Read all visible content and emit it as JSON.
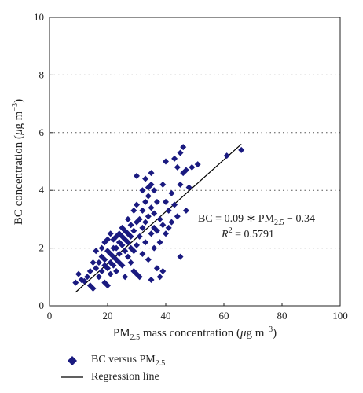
{
  "chart_data": {
    "type": "scatter",
    "xlabel": {
      "pre": "PM",
      "sub": "2.5",
      "post": " mass concentration (",
      "mu": "μ",
      "unit": "g m",
      "sup": "−3",
      "close": ")"
    },
    "ylabel": {
      "pre": "BC concentration (",
      "mu": "μ",
      "unit": "g m",
      "sup": "−3",
      "close": ")"
    },
    "xlim": [
      0,
      100
    ],
    "ylim": [
      0,
      10
    ],
    "xticks": [
      0,
      20,
      40,
      60,
      80,
      100
    ],
    "yticks": [
      0,
      2,
      4,
      6,
      8,
      10
    ],
    "grid": "horizontal dotted",
    "marker_color": "#1a1a80",
    "line_color": "#000000",
    "regression": {
      "slope": 0.09,
      "intercept": -0.34,
      "x_range": [
        9,
        66
      ]
    },
    "annotation": {
      "eq_pre": "BC = 0.09 ∗ PM",
      "eq_sub": "2.5",
      "eq_post": " − 0.34",
      "r2_pre": "R",
      "r2_sup": "2",
      "r2_post": " = 0.5791"
    },
    "legend": {
      "scatter_pre": "BC versus PM",
      "scatter_sub": "2.5",
      "line_label": "Regression line"
    },
    "points": [
      [
        9,
        0.8
      ],
      [
        10,
        1.1
      ],
      [
        11,
        0.9
      ],
      [
        12,
        0.85
      ],
      [
        13,
        1.0
      ],
      [
        14,
        0.7
      ],
      [
        14,
        1.2
      ],
      [
        15,
        0.6
      ],
      [
        15,
        1.5
      ],
      [
        16,
        1.9
      ],
      [
        16,
        1.3
      ],
      [
        17,
        1.0
      ],
      [
        17,
        1.5
      ],
      [
        18,
        1.7
      ],
      [
        18,
        1.2
      ],
      [
        18,
        2.0
      ],
      [
        19,
        0.8
      ],
      [
        19,
        1.4
      ],
      [
        19,
        1.6
      ],
      [
        19,
        2.2
      ],
      [
        20,
        0.7
      ],
      [
        20,
        1.3
      ],
      [
        20,
        1.9
      ],
      [
        20,
        2.3
      ],
      [
        21,
        1.1
      ],
      [
        21,
        1.5
      ],
      [
        21,
        1.8
      ],
      [
        21,
        2.5
      ],
      [
        22,
        1.4
      ],
      [
        22,
        1.7
      ],
      [
        22,
        2.0
      ],
      [
        22,
        2.3
      ],
      [
        23,
        1.6
      ],
      [
        23,
        2.0
      ],
      [
        23,
        2.4
      ],
      [
        23,
        1.2
      ],
      [
        24,
        1.8
      ],
      [
        24,
        2.2
      ],
      [
        24,
        2.5
      ],
      [
        24,
        1.5
      ],
      [
        25,
        1.4
      ],
      [
        25,
        2.1
      ],
      [
        25,
        2.4
      ],
      [
        25,
        2.7
      ],
      [
        26,
        1.0
      ],
      [
        26,
        1.9
      ],
      [
        26,
        2.3
      ],
      [
        26,
        2.6
      ],
      [
        27,
        1.7
      ],
      [
        27,
        2.2
      ],
      [
        27,
        2.5
      ],
      [
        27,
        3.0
      ],
      [
        28,
        1.5
      ],
      [
        28,
        2.0
      ],
      [
        28,
        2.4
      ],
      [
        28,
        2.8
      ],
      [
        29,
        1.9
      ],
      [
        29,
        2.6
      ],
      [
        29,
        3.3
      ],
      [
        29,
        1.2
      ],
      [
        30,
        1.1
      ],
      [
        30,
        2.1
      ],
      [
        30,
        2.9
      ],
      [
        30,
        3.5
      ],
      [
        30,
        4.5
      ],
      [
        31,
        2.4
      ],
      [
        31,
        3.0
      ],
      [
        31,
        1.0
      ],
      [
        32,
        1.8
      ],
      [
        32,
        2.7
      ],
      [
        32,
        3.3
      ],
      [
        32,
        4.0
      ],
      [
        33,
        2.2
      ],
      [
        33,
        2.9
      ],
      [
        33,
        3.6
      ],
      [
        33,
        4.4
      ],
      [
        34,
        1.6
      ],
      [
        34,
        3.1
      ],
      [
        34,
        3.8
      ],
      [
        34,
        4.1
      ],
      [
        35,
        2.5
      ],
      [
        35,
        3.4
      ],
      [
        35,
        4.2
      ],
      [
        35,
        4.6
      ],
      [
        35,
        0.9
      ],
      [
        36,
        2.0
      ],
      [
        36,
        2.7
      ],
      [
        36,
        3.2
      ],
      [
        36,
        4.0
      ],
      [
        37,
        2.6
      ],
      [
        37,
        3.6
      ],
      [
        37,
        1.3
      ],
      [
        38,
        1.0
      ],
      [
        38,
        2.2
      ],
      [
        38,
        3.0
      ],
      [
        39,
        2.8
      ],
      [
        39,
        4.2
      ],
      [
        39,
        1.2
      ],
      [
        40,
        3.6
      ],
      [
        40,
        2.5
      ],
      [
        40,
        5.0
      ],
      [
        41,
        3.3
      ],
      [
        41,
        2.7
      ],
      [
        42,
        3.9
      ],
      [
        42,
        2.9
      ],
      [
        43,
        5.1
      ],
      [
        43,
        3.5
      ],
      [
        44,
        4.8
      ],
      [
        44,
        3.1
      ],
      [
        45,
        5.3
      ],
      [
        45,
        4.2
      ],
      [
        45,
        1.7
      ],
      [
        46,
        5.5
      ],
      [
        46,
        4.6
      ],
      [
        47,
        3.3
      ],
      [
        47,
        4.7
      ],
      [
        48,
        4.1
      ],
      [
        49,
        4.8
      ],
      [
        51,
        4.9
      ],
      [
        61,
        5.2
      ],
      [
        66,
        5.4
      ]
    ]
  }
}
